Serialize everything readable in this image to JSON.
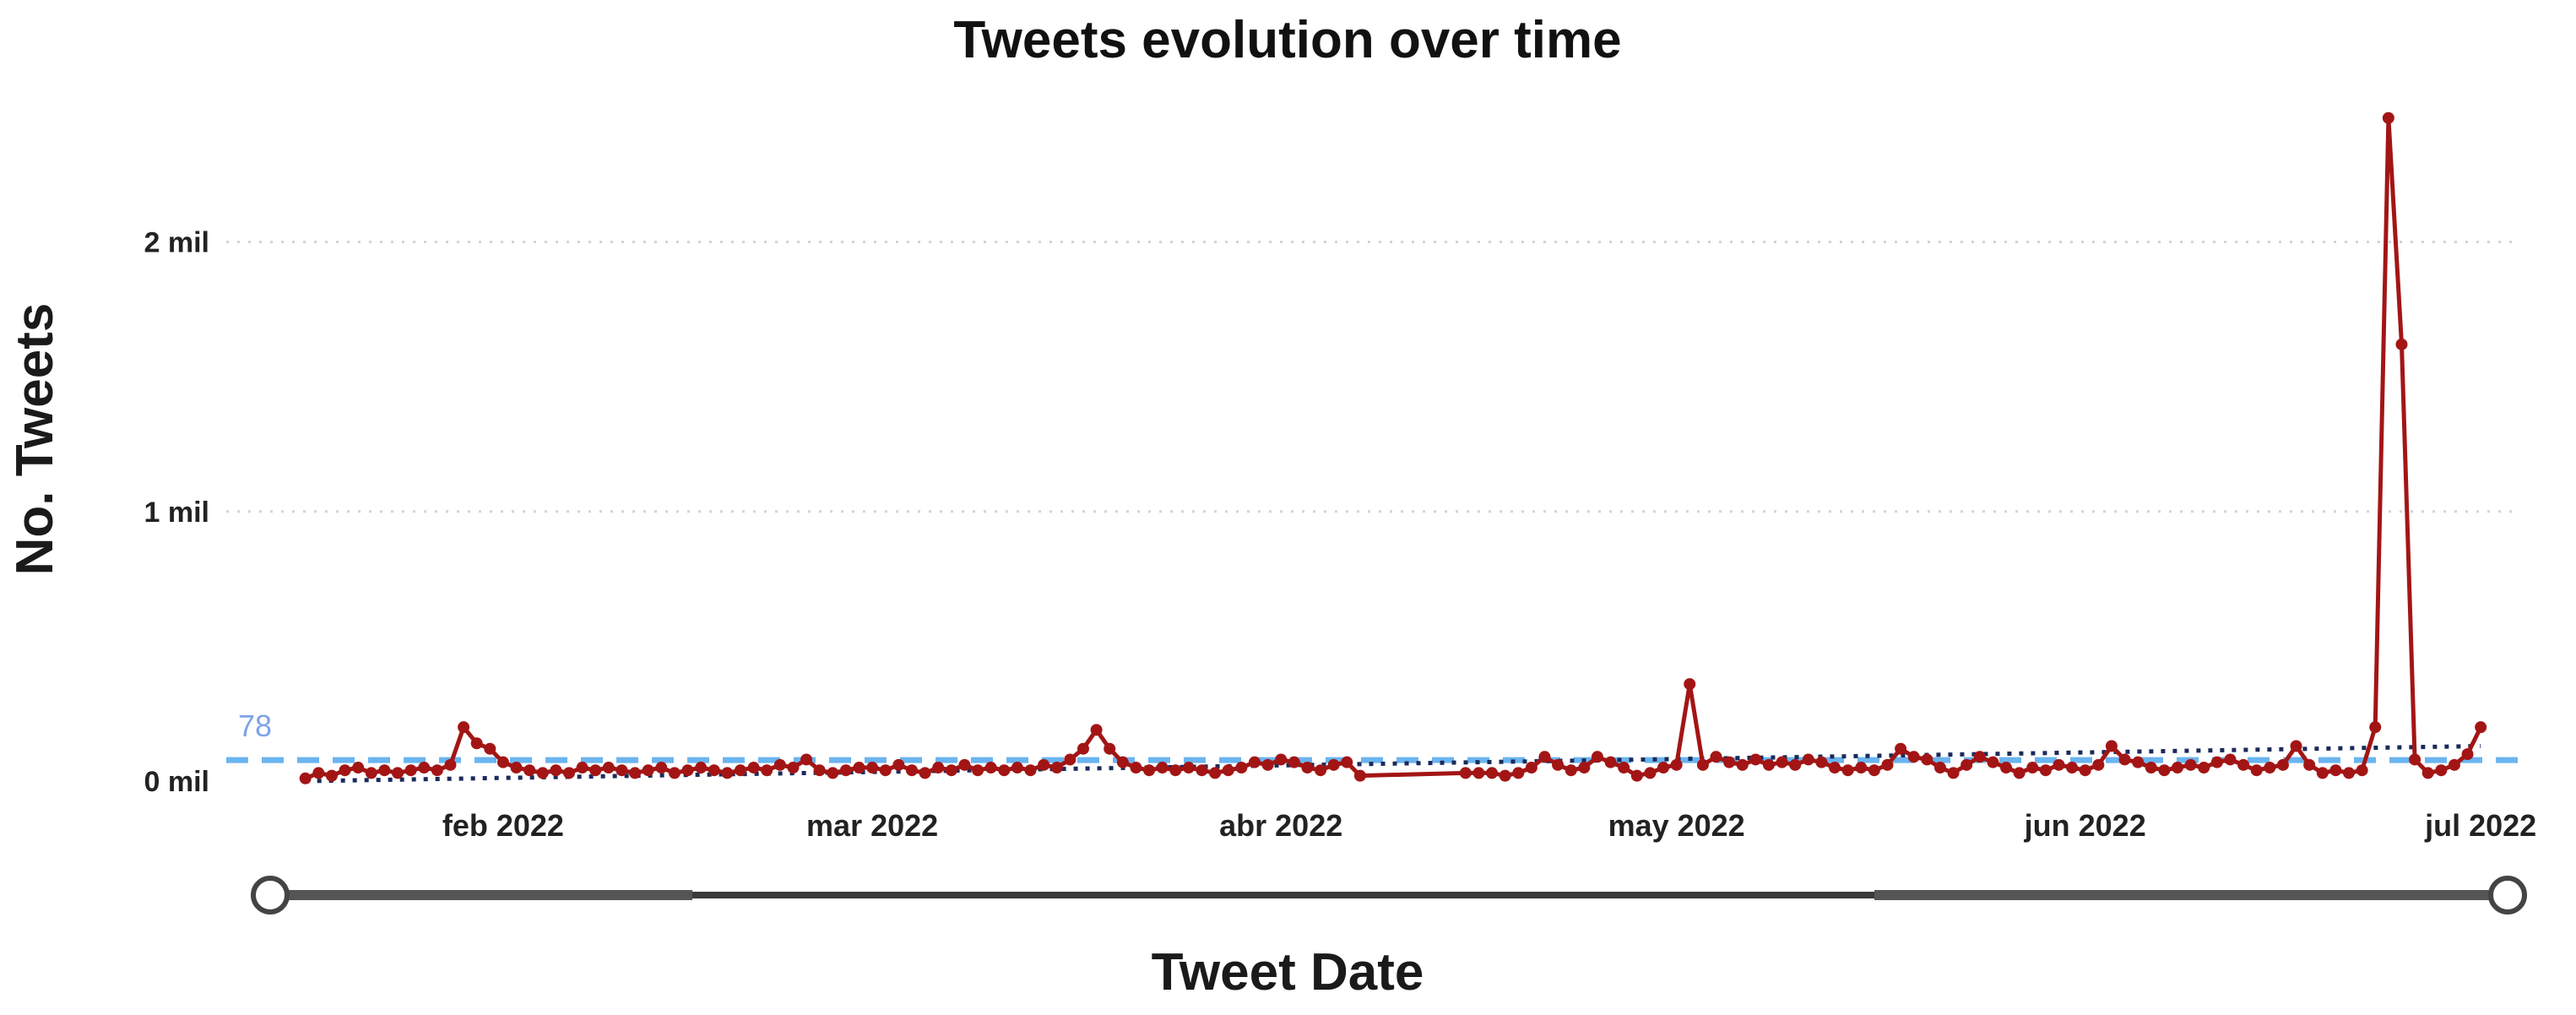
{
  "chart_data": {
    "type": "line",
    "title": "Tweets evolution over time",
    "xlabel": "Tweet Date",
    "ylabel": "No. Tweets",
    "ylim": [
      0,
      2.6
    ],
    "yticks": [
      {
        "value": 0,
        "label": "0 mil"
      },
      {
        "value": 1,
        "label": "1 mil"
      },
      {
        "value": 2,
        "label": "2 mil"
      }
    ],
    "xlim": [
      "2022-01-11",
      "2022-07-04"
    ],
    "xticks": [
      {
        "date": "2022-02-01",
        "label": "feb 2022"
      },
      {
        "date": "2022-03-01",
        "label": "mar 2022"
      },
      {
        "date": "2022-04-01",
        "label": "abr 2022"
      },
      {
        "date": "2022-05-01",
        "label": "may 2022"
      },
      {
        "date": "2022-06-01",
        "label": "jun 2022"
      },
      {
        "date": "2022-07-01",
        "label": "jul 2022"
      }
    ],
    "grid": "horizontal dotted",
    "reference_line": {
      "label": "78",
      "value": 0.078,
      "color": "#6ab4f0"
    },
    "trend_line": {
      "start": [
        "2022-01-17",
        0.0
      ],
      "end": [
        "2022-07-01",
        0.13
      ],
      "color": "#1a2a5a"
    },
    "series": [
      {
        "color": "#a31515",
        "points": [
          [
            "2022-01-17",
            0.01
          ],
          [
            "2022-01-18",
            0.03
          ],
          [
            "2022-01-19",
            0.02
          ],
          [
            "2022-01-20",
            0.04
          ],
          [
            "2022-01-21",
            0.05
          ],
          [
            "2022-01-22",
            0.03
          ],
          [
            "2022-01-23",
            0.04
          ],
          [
            "2022-01-24",
            0.03
          ],
          [
            "2022-01-25",
            0.04
          ],
          [
            "2022-01-26",
            0.05
          ],
          [
            "2022-01-27",
            0.04
          ],
          [
            "2022-01-28",
            0.06
          ],
          [
            "2022-01-29",
            0.2
          ],
          [
            "2022-01-30",
            0.14
          ],
          [
            "2022-01-31",
            0.12
          ],
          [
            "2022-02-01",
            0.07
          ],
          [
            "2022-02-02",
            0.05
          ],
          [
            "2022-02-03",
            0.04
          ],
          [
            "2022-02-04",
            0.03
          ],
          [
            "2022-02-05",
            0.04
          ],
          [
            "2022-02-06",
            0.03
          ],
          [
            "2022-02-07",
            0.05
          ],
          [
            "2022-02-08",
            0.04
          ],
          [
            "2022-02-09",
            0.05
          ],
          [
            "2022-02-10",
            0.04
          ],
          [
            "2022-02-11",
            0.03
          ],
          [
            "2022-02-12",
            0.04
          ],
          [
            "2022-02-13",
            0.05
          ],
          [
            "2022-02-14",
            0.03
          ],
          [
            "2022-02-15",
            0.04
          ],
          [
            "2022-02-16",
            0.05
          ],
          [
            "2022-02-17",
            0.04
          ],
          [
            "2022-02-18",
            0.03
          ],
          [
            "2022-02-19",
            0.04
          ],
          [
            "2022-02-20",
            0.05
          ],
          [
            "2022-02-21",
            0.04
          ],
          [
            "2022-02-22",
            0.06
          ],
          [
            "2022-02-23",
            0.05
          ],
          [
            "2022-02-24",
            0.08
          ],
          [
            "2022-02-25",
            0.04
          ],
          [
            "2022-02-26",
            0.03
          ],
          [
            "2022-02-27",
            0.04
          ],
          [
            "2022-02-28",
            0.05
          ],
          [
            "2022-03-01",
            0.05
          ],
          [
            "2022-03-02",
            0.04
          ],
          [
            "2022-03-03",
            0.06
          ],
          [
            "2022-03-04",
            0.04
          ],
          [
            "2022-03-05",
            0.03
          ],
          [
            "2022-03-06",
            0.05
          ],
          [
            "2022-03-07",
            0.04
          ],
          [
            "2022-03-08",
            0.06
          ],
          [
            "2022-03-09",
            0.04
          ],
          [
            "2022-03-10",
            0.05
          ],
          [
            "2022-03-11",
            0.04
          ],
          [
            "2022-03-12",
            0.05
          ],
          [
            "2022-03-13",
            0.04
          ],
          [
            "2022-03-14",
            0.06
          ],
          [
            "2022-03-15",
            0.05
          ],
          [
            "2022-03-16",
            0.08
          ],
          [
            "2022-03-17",
            0.12
          ],
          [
            "2022-03-18",
            0.19
          ],
          [
            "2022-03-19",
            0.12
          ],
          [
            "2022-03-20",
            0.07
          ],
          [
            "2022-03-21",
            0.05
          ],
          [
            "2022-03-22",
            0.04
          ],
          [
            "2022-03-23",
            0.05
          ],
          [
            "2022-03-24",
            0.04
          ],
          [
            "2022-03-25",
            0.05
          ],
          [
            "2022-03-26",
            0.04
          ],
          [
            "2022-03-27",
            0.03
          ],
          [
            "2022-03-28",
            0.04
          ],
          [
            "2022-03-29",
            0.05
          ],
          [
            "2022-03-30",
            0.07
          ],
          [
            "2022-03-31",
            0.06
          ],
          [
            "2022-04-01",
            0.08
          ],
          [
            "2022-04-02",
            0.07
          ],
          [
            "2022-04-03",
            0.05
          ],
          [
            "2022-04-04",
            0.04
          ],
          [
            "2022-04-05",
            0.06
          ],
          [
            "2022-04-06",
            0.07
          ],
          [
            "2022-04-07",
            0.02
          ],
          [
            "2022-04-15",
            0.03
          ],
          [
            "2022-04-16",
            0.03
          ],
          [
            "2022-04-17",
            0.03
          ],
          [
            "2022-04-18",
            0.02
          ],
          [
            "2022-04-19",
            0.03
          ],
          [
            "2022-04-20",
            0.05
          ],
          [
            "2022-04-21",
            0.09
          ],
          [
            "2022-04-22",
            0.06
          ],
          [
            "2022-04-23",
            0.04
          ],
          [
            "2022-04-24",
            0.05
          ],
          [
            "2022-04-25",
            0.09
          ],
          [
            "2022-04-26",
            0.07
          ],
          [
            "2022-04-27",
            0.05
          ],
          [
            "2022-04-28",
            0.02
          ],
          [
            "2022-04-29",
            0.03
          ],
          [
            "2022-04-30",
            0.05
          ],
          [
            "2022-05-01",
            0.06
          ],
          [
            "2022-05-02",
            0.36
          ],
          [
            "2022-05-03",
            0.06
          ],
          [
            "2022-05-04",
            0.09
          ],
          [
            "2022-05-05",
            0.07
          ],
          [
            "2022-05-06",
            0.06
          ],
          [
            "2022-05-07",
            0.08
          ],
          [
            "2022-05-08",
            0.06
          ],
          [
            "2022-05-09",
            0.07
          ],
          [
            "2022-05-10",
            0.06
          ],
          [
            "2022-05-11",
            0.08
          ],
          [
            "2022-05-12",
            0.07
          ],
          [
            "2022-05-13",
            0.05
          ],
          [
            "2022-05-14",
            0.04
          ],
          [
            "2022-05-15",
            0.05
          ],
          [
            "2022-05-16",
            0.04
          ],
          [
            "2022-05-17",
            0.06
          ],
          [
            "2022-05-18",
            0.12
          ],
          [
            "2022-05-19",
            0.09
          ],
          [
            "2022-05-20",
            0.08
          ],
          [
            "2022-05-21",
            0.05
          ],
          [
            "2022-05-22",
            0.03
          ],
          [
            "2022-05-23",
            0.06
          ],
          [
            "2022-05-24",
            0.09
          ],
          [
            "2022-05-25",
            0.07
          ],
          [
            "2022-05-26",
            0.05
          ],
          [
            "2022-05-27",
            0.03
          ],
          [
            "2022-05-28",
            0.05
          ],
          [
            "2022-05-29",
            0.04
          ],
          [
            "2022-05-30",
            0.06
          ],
          [
            "2022-05-31",
            0.05
          ],
          [
            "2022-06-01",
            0.04
          ],
          [
            "2022-06-02",
            0.06
          ],
          [
            "2022-06-03",
            0.13
          ],
          [
            "2022-06-04",
            0.08
          ],
          [
            "2022-06-05",
            0.07
          ],
          [
            "2022-06-06",
            0.05
          ],
          [
            "2022-06-07",
            0.04
          ],
          [
            "2022-06-08",
            0.05
          ],
          [
            "2022-06-09",
            0.06
          ],
          [
            "2022-06-10",
            0.05
          ],
          [
            "2022-06-11",
            0.07
          ],
          [
            "2022-06-12",
            0.08
          ],
          [
            "2022-06-13",
            0.06
          ],
          [
            "2022-06-14",
            0.04
          ],
          [
            "2022-06-15",
            0.05
          ],
          [
            "2022-06-16",
            0.06
          ],
          [
            "2022-06-17",
            0.13
          ],
          [
            "2022-06-18",
            0.06
          ],
          [
            "2022-06-19",
            0.03
          ],
          [
            "2022-06-20",
            0.04
          ],
          [
            "2022-06-21",
            0.03
          ],
          [
            "2022-06-22",
            0.04
          ],
          [
            "2022-06-23",
            0.2
          ],
          [
            "2022-06-24",
            2.46
          ],
          [
            "2022-06-25",
            1.62
          ],
          [
            "2022-06-26",
            0.08
          ],
          [
            "2022-06-27",
            0.03
          ],
          [
            "2022-06-28",
            0.04
          ],
          [
            "2022-06-29",
            0.06
          ],
          [
            "2022-06-30",
            0.1
          ],
          [
            "2022-07-01",
            0.2
          ]
        ]
      }
    ]
  }
}
